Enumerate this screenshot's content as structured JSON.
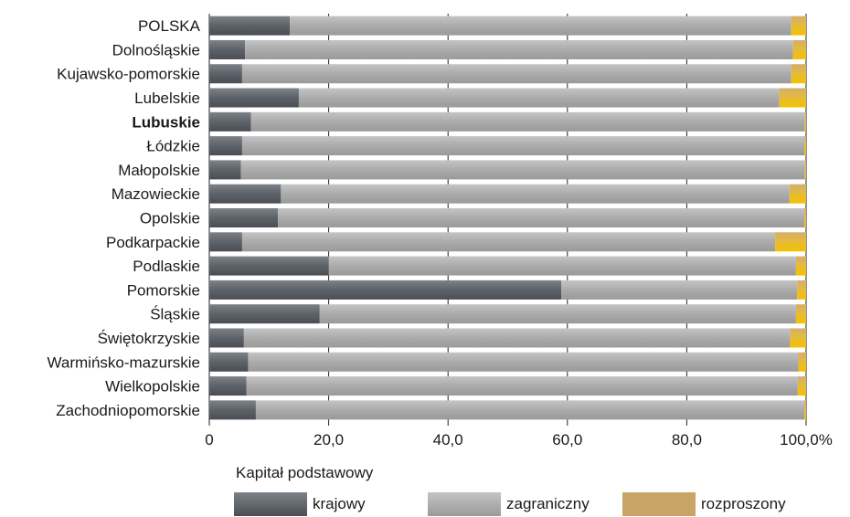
{
  "chart_data": {
    "type": "bar",
    "orientation": "horizontal",
    "stacked": true,
    "categories": [
      "POLSKA",
      "Dolnośląskie",
      "Kujawsko-pomorskie",
      "Lubelskie",
      "Lubuskie",
      "Łódzkie",
      "Małopolskie",
      "Mazowieckie",
      "Opolskie",
      "Podkarpackie",
      "Podlaskie",
      "Pomorskie",
      "Śląskie",
      "Świętokrzyskie",
      "Warmińsko-mazurskie",
      "Wielkopolskie",
      "Zachodniopomorskie"
    ],
    "highlighted_category": "Lubuskie",
    "series": [
      {
        "name": "krajowy",
        "color": "#5f646b",
        "values": [
          13.5,
          6.0,
          5.5,
          15.0,
          7.0,
          5.5,
          5.3,
          12.0,
          11.5,
          5.5,
          20.0,
          59.0,
          18.5,
          5.8,
          6.5,
          6.2,
          7.8
        ]
      },
      {
        "name": "zagraniczny",
        "color": "#a9a9a9",
        "values": [
          84.0,
          91.8,
          92.0,
          80.5,
          92.8,
          94.2,
          94.5,
          85.2,
          88.2,
          89.3,
          78.3,
          39.5,
          79.8,
          91.5,
          92.2,
          92.4,
          91.9
        ]
      },
      {
        "name": "rozproszony",
        "color": "#c8a465",
        "values": [
          2.5,
          2.2,
          2.5,
          4.5,
          0.2,
          0.3,
          0.2,
          2.8,
          0.3,
          5.2,
          1.7,
          1.5,
          1.7,
          2.7,
          1.3,
          1.4,
          0.3
        ]
      }
    ],
    "x_ticks": [
      "0",
      "20,0",
      "40,0",
      "60,0",
      "80,0",
      "100,0%"
    ],
    "xlim": [
      0,
      100
    ],
    "grid": "vertical",
    "legend_title": "Kapitał podstawowy",
    "legend_position": "bottom"
  },
  "legend": {
    "title": "Kapitał podstawowy",
    "items": [
      "krajowy",
      "zagraniczny",
      "rozproszony"
    ]
  }
}
